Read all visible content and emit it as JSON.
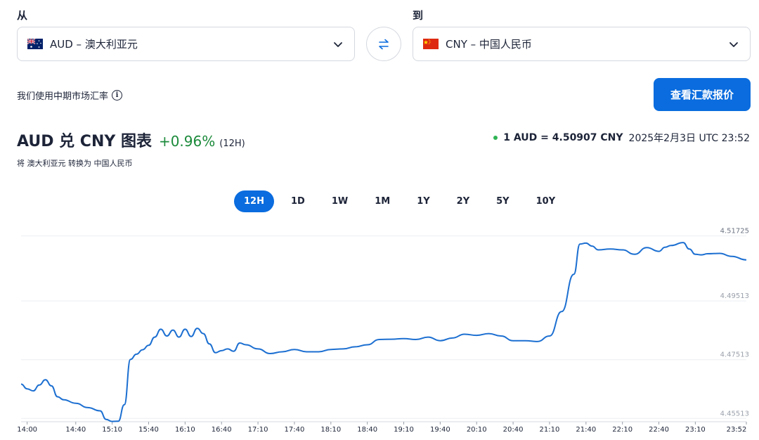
{
  "converter": {
    "from_label": "从",
    "to_label": "到",
    "from_value": "AUD – 澳大利亚元",
    "to_value": "CNY – 中国人民币",
    "swap_icon": "swap-arrows-icon"
  },
  "midmarket_text": "我们使用中期市场汇率",
  "quote_button": "查看汇款报价",
  "header": {
    "title": "AUD 兑 CNY 图表",
    "change": "+0.96%",
    "period": "(12H)",
    "subtitle": "将 澳大利亚元 转换为 中国人民币",
    "rate": "1 AUD = 4.50907 CNY",
    "timestamp": "2025年2月3日 UTC 23:52"
  },
  "tabs": [
    {
      "label": "12H",
      "active": true
    },
    {
      "label": "1D",
      "active": false
    },
    {
      "label": "1W",
      "active": false
    },
    {
      "label": "1M",
      "active": false
    },
    {
      "label": "1Y",
      "active": false
    },
    {
      "label": "2Y",
      "active": false
    },
    {
      "label": "5Y",
      "active": false
    },
    {
      "label": "10Y",
      "active": false
    }
  ],
  "colors": {
    "accent": "#0a6cde",
    "positive": "#1b8a3a",
    "line": "#1c6fd1",
    "grid": "#eceef1"
  },
  "chart_data": {
    "type": "line",
    "x": [
      "13:55",
      "14:00",
      "14:05",
      "14:10",
      "14:15",
      "14:20",
      "14:25",
      "14:30",
      "14:40",
      "14:50",
      "15:00",
      "15:05",
      "15:10",
      "15:15",
      "15:20",
      "15:25",
      "15:30",
      "15:35",
      "15:40",
      "15:45",
      "15:50",
      "15:55",
      "16:00",
      "16:05",
      "16:10",
      "16:15",
      "16:20",
      "16:25",
      "16:30",
      "16:35",
      "16:40",
      "16:45",
      "16:50",
      "16:55",
      "17:00",
      "17:10",
      "17:20",
      "17:30",
      "17:40",
      "17:50",
      "18:00",
      "18:10",
      "18:20",
      "18:30",
      "18:40",
      "18:50",
      "19:00",
      "19:10",
      "19:20",
      "19:30",
      "19:40",
      "19:50",
      "20:00",
      "20:10",
      "20:20",
      "20:30",
      "20:40",
      "20:50",
      "21:00",
      "21:10",
      "21:20",
      "21:30",
      "21:35",
      "21:40",
      "21:45",
      "21:50",
      "22:00",
      "22:10",
      "22:20",
      "22:30",
      "22:40",
      "22:45",
      "22:50",
      "23:00",
      "23:05",
      "23:10",
      "23:15",
      "23:20",
      "23:30",
      "23:40",
      "23:52"
    ],
    "y": [
      4.4668,
      4.4652,
      4.4645,
      4.4665,
      4.4683,
      4.4662,
      4.4625,
      4.4615,
      4.4603,
      4.4588,
      4.4577,
      4.4548,
      4.4541,
      4.4542,
      4.4598,
      4.4752,
      4.477,
      4.4785,
      4.48,
      4.4828,
      4.4855,
      4.4832,
      4.4852,
      4.4828,
      4.4855,
      4.483,
      4.4858,
      4.484,
      4.4805,
      4.4775,
      4.4782,
      4.4788,
      4.478,
      4.4808,
      4.4802,
      4.4788,
      4.4772,
      4.4778,
      4.4786,
      4.4778,
      4.4778,
      4.4786,
      4.4788,
      4.4795,
      4.4802,
      4.482,
      4.4821,
      4.4823,
      4.482,
      4.4828,
      4.4816,
      4.4825,
      4.4838,
      4.4834,
      4.484,
      4.4832,
      4.4816,
      4.4816,
      4.4813,
      4.4832,
      4.4915,
      4.5042,
      4.5145,
      4.5148,
      4.5138,
      4.5125,
      4.5128,
      4.5125,
      4.511,
      4.5133,
      4.512,
      4.5134,
      4.514,
      4.515,
      4.5128,
      4.511,
      4.5108,
      4.5112,
      4.5113,
      4.5103,
      4.5091
    ],
    "xticks": [
      "14:00",
      "14:40",
      "15:10",
      "15:40",
      "16:10",
      "16:40",
      "17:10",
      "17:40",
      "18:10",
      "18:40",
      "19:10",
      "19:40",
      "20:10",
      "20:40",
      "21:10",
      "21:40",
      "22:10",
      "22:40",
      "23:10",
      "23:52"
    ],
    "yticks": [
      4.51725,
      4.49513,
      4.47513,
      4.45513
    ],
    "ytick_labels": [
      "4.51725",
      "4.49513",
      "4.47513",
      "4.45513"
    ],
    "ylim": [
      4.454,
      4.521
    ],
    "grid": true
  }
}
